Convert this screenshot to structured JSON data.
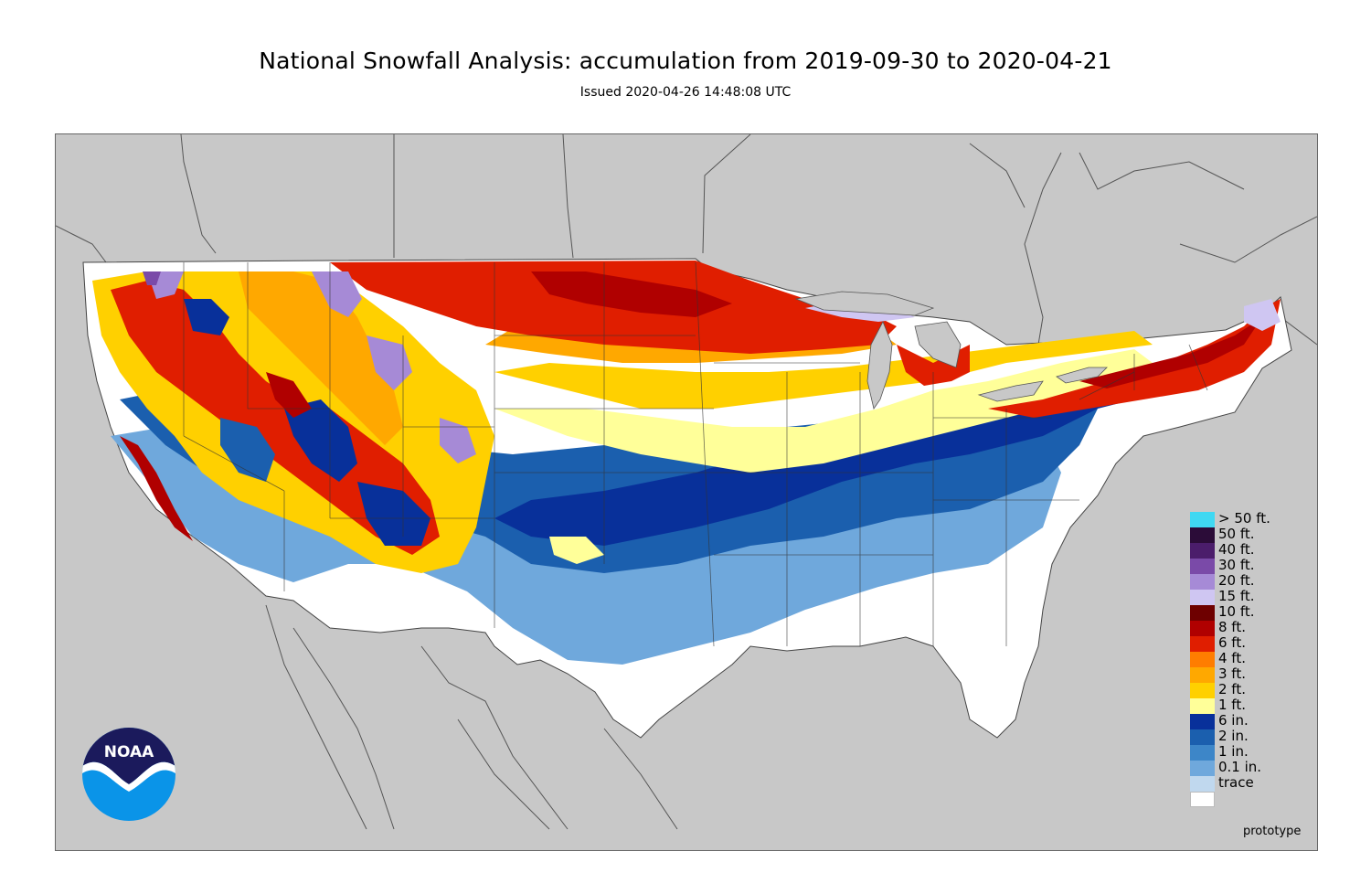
{
  "header": {
    "title": "National Snowfall Analysis: accumulation from 2019-09-30 to 2020-04-21",
    "subtitle": "Issued 2020-04-26 14:48:08 UTC"
  },
  "map": {
    "background_color": "#c8c8c8",
    "land_outside_color": "#c8c8c8",
    "boundary_color": "#555555"
  },
  "legend": {
    "items": [
      {
        "label": "> 50 ft.",
        "color": "#3fd8f2"
      },
      {
        "label": "50 ft.",
        "color": "#2b0c38"
      },
      {
        "label": "40 ft.",
        "color": "#4b1d6b"
      },
      {
        "label": "30 ft.",
        "color": "#7a4aa8"
      },
      {
        "label": "20 ft.",
        "color": "#a68ad6"
      },
      {
        "label": "15 ft.",
        "color": "#cfc6f2"
      },
      {
        "label": "10 ft.",
        "color": "#6e0000"
      },
      {
        "label": "8 ft.",
        "color": "#b00000"
      },
      {
        "label": "6 ft.",
        "color": "#e01e00"
      },
      {
        "label": "4 ft.",
        "color": "#ff7d00"
      },
      {
        "label": "3 ft.",
        "color": "#ffa800"
      },
      {
        "label": "2 ft.",
        "color": "#ffd000"
      },
      {
        "label": "1 ft.",
        "color": "#ffff99"
      },
      {
        "label": "6 in.",
        "color": "#08309a"
      },
      {
        "label": "2 in.",
        "color": "#1b5fae"
      },
      {
        "label": "1 in.",
        "color": "#3d86c8"
      },
      {
        "label": "0.1 in.",
        "color": "#6fa8dc"
      },
      {
        "label": "trace",
        "color": "#c0d8ee"
      },
      {
        "label": "",
        "color": "#ffffff"
      }
    ]
  },
  "footer": {
    "label": "prototype"
  },
  "logo": {
    "text": "NOAA"
  }
}
